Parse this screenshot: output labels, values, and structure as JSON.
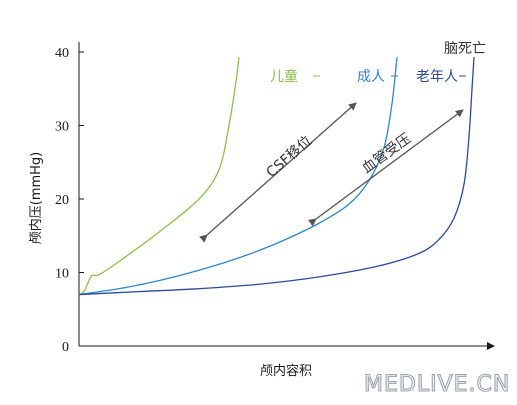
{
  "chart_data": {
    "type": "line",
    "title": "",
    "xlabel": "颅内容积",
    "ylabel": "颅内压(mmHg)",
    "ylim": [
      0,
      40
    ],
    "yticks": [
      0,
      10,
      20,
      30,
      40
    ],
    "grid": false,
    "series": [
      {
        "name": "儿童",
        "color": "#8cbf4e",
        "points": [
          [
            0,
            7
          ],
          [
            5,
            7.4
          ],
          [
            9,
            8.6
          ],
          [
            13,
            9.6
          ],
          [
            20,
            9.7
          ],
          [
            40,
            11.5
          ],
          [
            80,
            15.5
          ],
          [
            120,
            20
          ],
          [
            140,
            24
          ],
          [
            150,
            30
          ],
          [
            157,
            36
          ],
          [
            160,
            39.3
          ]
        ]
      },
      {
        "name": "成人",
        "color": "#2f87c9",
        "points": [
          [
            0,
            7
          ],
          [
            40,
            7.8
          ],
          [
            80,
            8.9
          ],
          [
            120,
            10.3
          ],
          [
            160,
            12
          ],
          [
            200,
            14.1
          ],
          [
            240,
            16.7
          ],
          [
            270,
            19.3
          ],
          [
            290,
            22.5
          ],
          [
            305,
            27
          ],
          [
            313,
            33
          ],
          [
            318,
            39.3
          ]
        ]
      },
      {
        "name": "老年人",
        "color": "#2a4a9e",
        "points": [
          [
            0,
            7
          ],
          [
            60,
            7.4
          ],
          [
            120,
            7.8
          ],
          [
            180,
            8.4
          ],
          [
            240,
            9.4
          ],
          [
            300,
            10.9
          ],
          [
            340,
            12.6
          ],
          [
            360,
            14.5
          ],
          [
            375,
            17.4
          ],
          [
            385,
            22
          ],
          [
            390,
            28.5
          ],
          [
            393,
            35
          ],
          [
            395,
            39.3
          ]
        ]
      }
    ],
    "annotations": {
      "death": "脑死亡",
      "csf": "CSF移位",
      "vascular": "血管受压"
    }
  },
  "watermark": "MEDLIVE.CN"
}
